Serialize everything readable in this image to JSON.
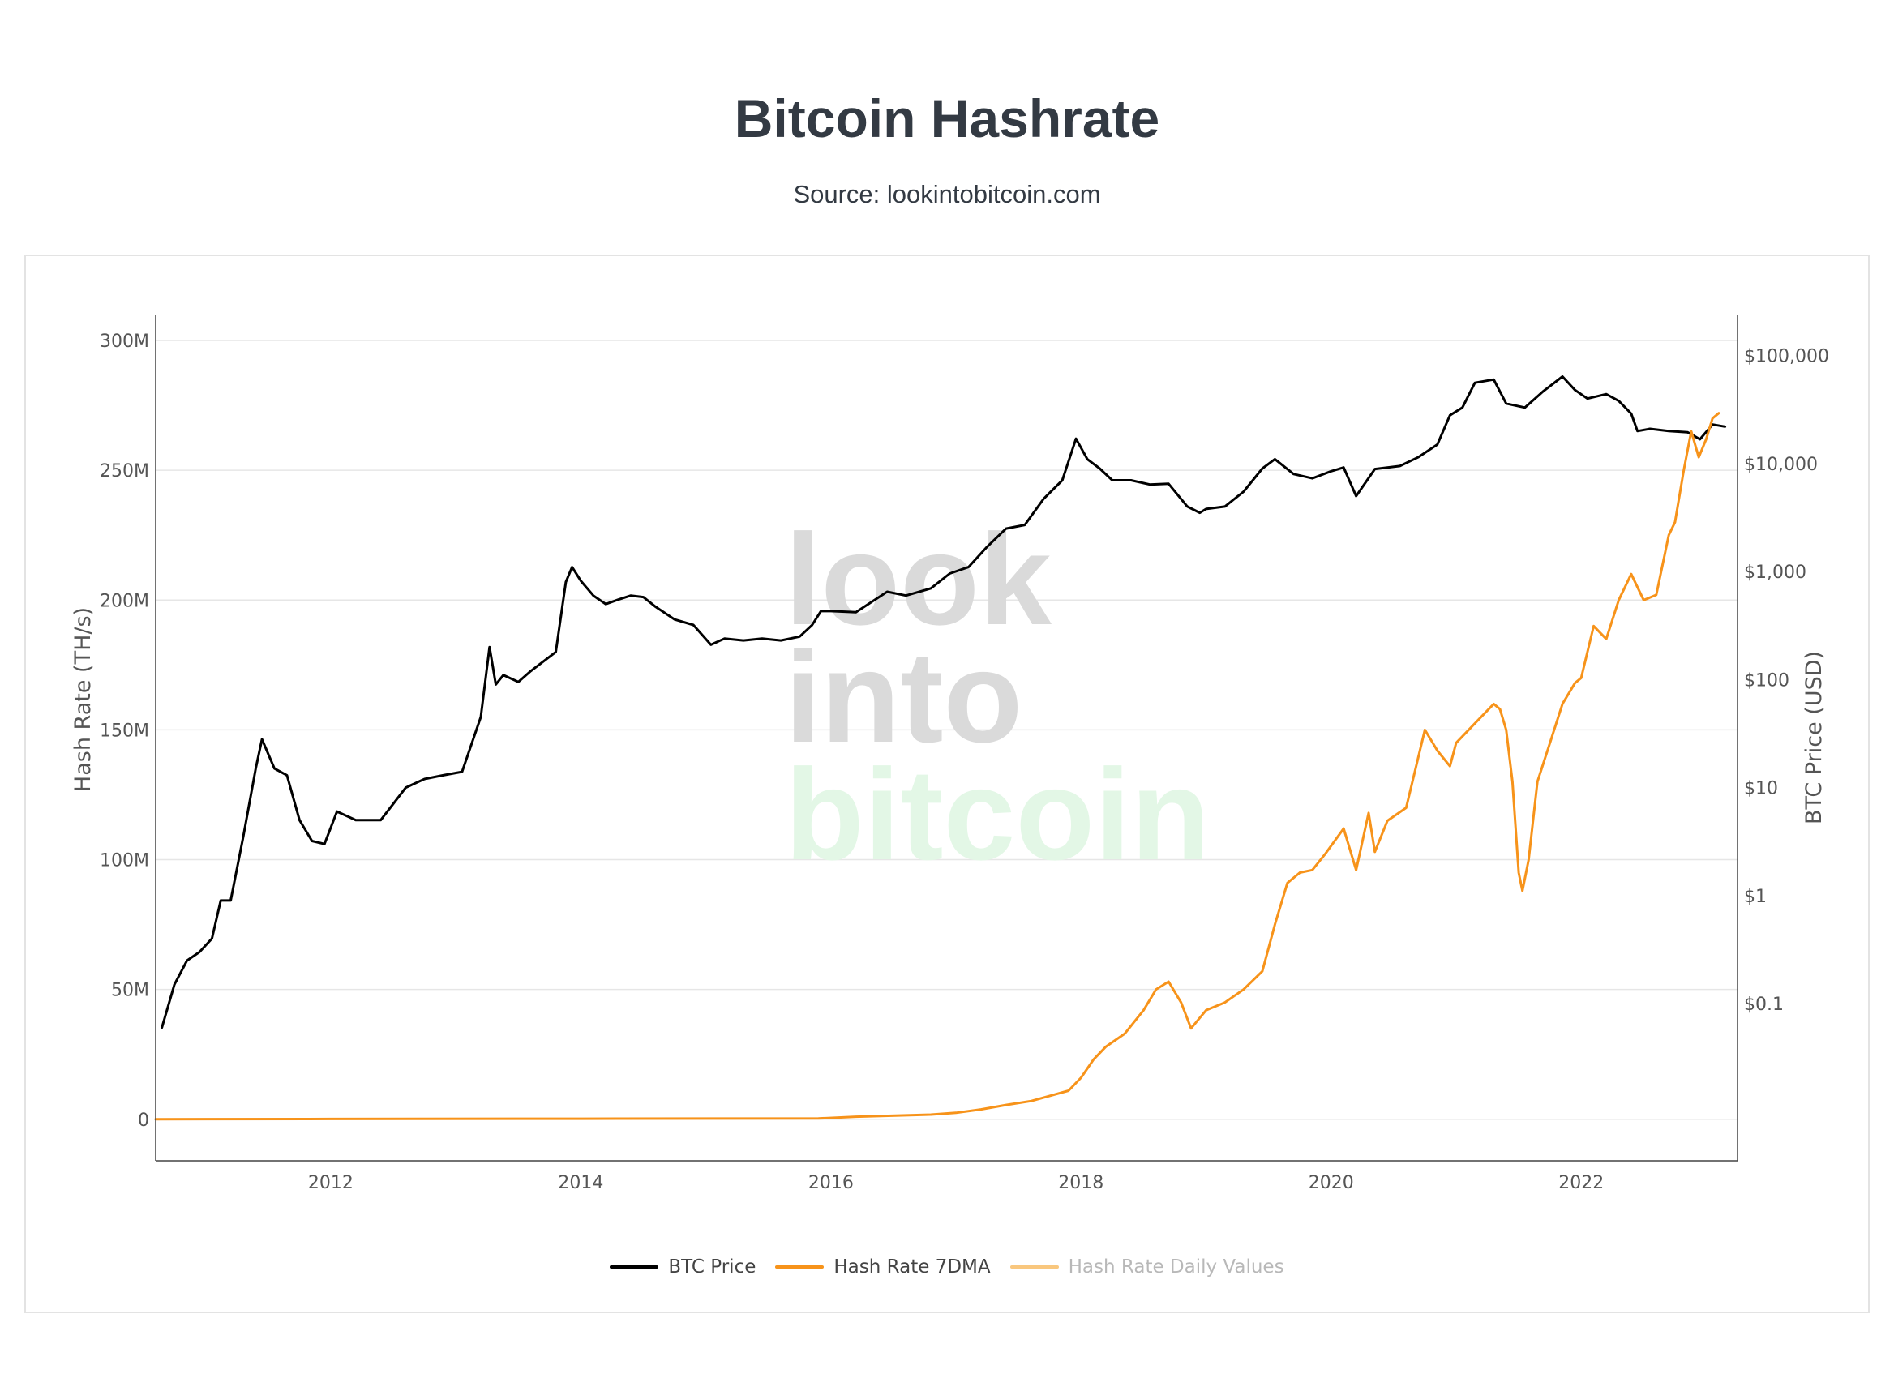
{
  "header": {
    "title": "Bitcoin Hashrate",
    "subtitle": "Source: lookintobitcoin.com"
  },
  "watermark": {
    "line1": "look",
    "line2": "into",
    "line3": "bitcoin"
  },
  "colors": {
    "price": "#000000",
    "hash7dma": "#f7931a",
    "hashDaily": "#f9c77e",
    "grid": "#e6e6e6",
    "axisText": "#555555",
    "watermarkGray": "#d9d9d9",
    "watermarkGreen": "#dff5e3"
  },
  "chart_data": {
    "type": "line",
    "title": "",
    "xlabel": "",
    "ylabel": "Hash Rate (TH/s)",
    "y2label": "BTC Price (USD)",
    "xlim": [
      2010.6,
      2023.25
    ],
    "ylim": [
      -16000000,
      310000000
    ],
    "y2lim": [
      0.0035,
      240000
    ],
    "y2scale": "log",
    "grid": true,
    "legend_position": "bottom-center",
    "x_ticks": [
      {
        "value": 2012,
        "label": "2012"
      },
      {
        "value": 2014,
        "label": "2014"
      },
      {
        "value": 2016,
        "label": "2016"
      },
      {
        "value": 2018,
        "label": "2018"
      },
      {
        "value": 2020,
        "label": "2020"
      },
      {
        "value": 2022,
        "label": "2022"
      }
    ],
    "y_ticks": [
      {
        "value": 0,
        "label": "0"
      },
      {
        "value": 50000000,
        "label": "50M"
      },
      {
        "value": 100000000,
        "label": "100M"
      },
      {
        "value": 150000000,
        "label": "150M"
      },
      {
        "value": 200000000,
        "label": "200M"
      },
      {
        "value": 250000000,
        "label": "250M"
      },
      {
        "value": 300000000,
        "label": "300M"
      }
    ],
    "y2_ticks": [
      {
        "value": 0.1,
        "label": "$0.1"
      },
      {
        "value": 1,
        "label": "$1"
      },
      {
        "value": 10,
        "label": "$10"
      },
      {
        "value": 100,
        "label": "$100"
      },
      {
        "value": 1000,
        "label": "$1,000"
      },
      {
        "value": 10000,
        "label": "$10,000"
      },
      {
        "value": 100000,
        "label": "$100,000"
      }
    ],
    "series": [
      {
        "name": "BTC Price",
        "axis": "right",
        "color": "#000000",
        "x": [
          2010.65,
          2010.75,
          2010.85,
          2010.95,
          2011.05,
          2011.12,
          2011.2,
          2011.3,
          2011.4,
          2011.45,
          2011.55,
          2011.65,
          2011.75,
          2011.85,
          2011.95,
          2012.05,
          2012.2,
          2012.4,
          2012.6,
          2012.75,
          2012.9,
          2013.05,
          2013.2,
          2013.27,
          2013.32,
          2013.38,
          2013.5,
          2013.6,
          2013.8,
          2013.88,
          2013.93,
          2014.0,
          2014.1,
          2014.2,
          2014.3,
          2014.4,
          2014.5,
          2014.6,
          2014.75,
          2014.9,
          2015.04,
          2015.15,
          2015.3,
          2015.45,
          2015.6,
          2015.75,
          2015.85,
          2015.92,
          2016.0,
          2016.2,
          2016.45,
          2016.6,
          2016.8,
          2016.95,
          2017.1,
          2017.25,
          2017.4,
          2017.55,
          2017.7,
          2017.85,
          2017.96,
          2018.05,
          2018.15,
          2018.25,
          2018.4,
          2018.55,
          2018.7,
          2018.85,
          2018.95,
          2019.0,
          2019.15,
          2019.3,
          2019.45,
          2019.55,
          2019.7,
          2019.85,
          2020.0,
          2020.1,
          2020.2,
          2020.35,
          2020.55,
          2020.7,
          2020.85,
          2020.95,
          2021.05,
          2021.15,
          2021.3,
          2021.4,
          2021.55,
          2021.7,
          2021.85,
          2021.95,
          2022.05,
          2022.2,
          2022.3,
          2022.4,
          2022.45,
          2022.55,
          2022.7,
          2022.85,
          2022.95,
          2023.05,
          2023.15
        ],
        "values": [
          0.06,
          0.15,
          0.25,
          0.3,
          0.4,
          0.9,
          0.9,
          3.5,
          15,
          28,
          15,
          13,
          5,
          3.2,
          3.0,
          6,
          5,
          5,
          10,
          12,
          13,
          14,
          45,
          200,
          90,
          110,
          95,
          120,
          180,
          800,
          1100,
          820,
          600,
          500,
          550,
          600,
          580,
          470,
          360,
          320,
          210,
          240,
          230,
          240,
          230,
          250,
          320,
          430,
          430,
          420,
          650,
          600,
          700,
          960,
          1100,
          1700,
          2500,
          2700,
          4700,
          7000,
          17000,
          11000,
          9000,
          7000,
          7000,
          6400,
          6500,
          4000,
          3500,
          3800,
          4000,
          5500,
          9000,
          11000,
          8000,
          7300,
          8500,
          9200,
          5000,
          8900,
          9500,
          11500,
          15000,
          28000,
          33000,
          56000,
          60000,
          36000,
          33000,
          47000,
          64000,
          48000,
          40000,
          44000,
          38000,
          29000,
          20000,
          21000,
          20000,
          19500,
          16800,
          23000,
          22000
        ]
      },
      {
        "name": "Hash Rate 7DMA",
        "axis": "left",
        "color": "#f7931a",
        "x": [
          2010.6,
          2012.0,
          2014.0,
          2015.9,
          2016.2,
          2016.8,
          2017.0,
          2017.2,
          2017.4,
          2017.6,
          2017.75,
          2017.9,
          2018.0,
          2018.1,
          2018.2,
          2018.35,
          2018.5,
          2018.6,
          2018.7,
          2018.8,
          2018.88,
          2019.0,
          2019.15,
          2019.3,
          2019.45,
          2019.55,
          2019.65,
          2019.75,
          2019.85,
          2019.95,
          2020.1,
          2020.2,
          2020.3,
          2020.35,
          2020.45,
          2020.6,
          2020.75,
          2020.85,
          2020.95,
          2021.0,
          2021.1,
          2021.2,
          2021.3,
          2021.35,
          2021.4,
          2021.45,
          2021.5,
          2021.53,
          2021.58,
          2021.65,
          2021.75,
          2021.85,
          2021.95,
          2022.0,
          2022.1,
          2022.2,
          2022.3,
          2022.4,
          2022.45,
          2022.5,
          2022.6,
          2022.7,
          2022.75,
          2022.82,
          2022.88,
          2022.94,
          2023.0,
          2023.05,
          2023.1
        ],
        "values": [
          0,
          100000,
          200000,
          300000,
          1000000,
          1800000,
          2500000,
          3800000,
          5500000,
          7000000,
          9000000,
          11000000,
          16000000,
          23000000,
          28000000,
          33000000,
          42000000,
          50000000,
          53000000,
          45000000,
          35000000,
          42000000,
          45000000,
          50000000,
          57000000,
          75000000,
          91000000,
          95000000,
          96000000,
          102000000,
          112000000,
          96000000,
          118000000,
          103000000,
          115000000,
          120000000,
          150000000,
          142000000,
          136000000,
          145000000,
          150000000,
          155000000,
          160000000,
          158000000,
          150000000,
          130000000,
          95000000,
          88000000,
          100000000,
          130000000,
          145000000,
          160000000,
          168000000,
          170000000,
          190000000,
          185000000,
          200000000,
          210000000,
          205000000,
          200000000,
          202000000,
          225000000,
          230000000,
          250000000,
          265000000,
          255000000,
          262000000,
          270000000,
          272000000
        ]
      },
      {
        "name": "Hash Rate Daily Values",
        "axis": "left",
        "color": "#f9c77e",
        "visible": false,
        "x": [],
        "values": []
      }
    ]
  }
}
